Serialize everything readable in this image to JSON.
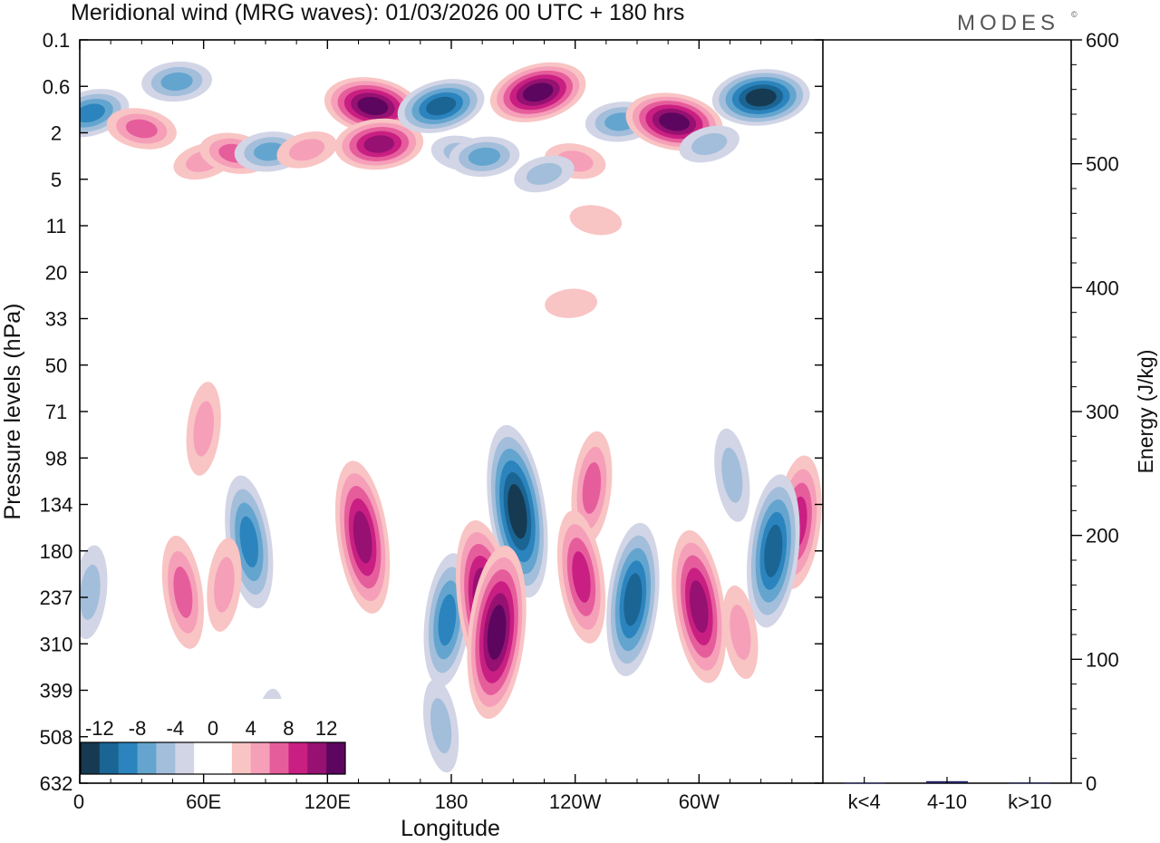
{
  "brand": "MODES",
  "brand_mark": "©",
  "chart_data": [
    {
      "type": "heatmap",
      "title": "Meridional wind (MRG waves):  01/03/2026  00 UTC  + 180 hrs",
      "xlabel": "Longitude",
      "ylabel": "Pressure levels (hPa)",
      "x_ticks": [
        "0",
        "60E",
        "120E",
        "180",
        "120W",
        "60W"
      ],
      "y_ticks": [
        "0.1",
        "0.6",
        "2",
        "5",
        "11",
        "20",
        "33",
        "50",
        "71",
        "98",
        "134",
        "180",
        "237",
        "310",
        "399",
        "508",
        "632"
      ],
      "colorbar": {
        "labels": [
          "-12",
          "-8",
          "-4",
          "0",
          "4",
          "8",
          "12"
        ],
        "colors": [
          "#163a52",
          "#1a6594",
          "#2b84bd",
          "#64a5cf",
          "#a2bedb",
          "#d2d5e6",
          "#ffffff",
          "#ffffff",
          "#f9c4c4",
          "#f59fb9",
          "#e65d9c",
          "#c91f82",
          "#961171",
          "#5c0660"
        ]
      },
      "positive_colors": [
        "#f9c4c4",
        "#f59fb9",
        "#e65d9c",
        "#c91f82",
        "#961171",
        "#5c0660"
      ],
      "negative_colors": [
        "#d2d5e6",
        "#a2bedb",
        "#64a5cf",
        "#2b84bd",
        "#1a6594",
        "#163a52"
      ],
      "features": [
        {
          "lon": 5,
          "lev": 1.2,
          "value": -7
        },
        {
          "lon": 30,
          "lev": 1.8,
          "value": 5
        },
        {
          "lon": 47,
          "lev": 0.5,
          "value": -6
        },
        {
          "lon": 60,
          "lev": 3.5,
          "value": 4
        },
        {
          "lon": 75,
          "lev": 3.0,
          "value": 5
        },
        {
          "lon": 92,
          "lev": 2.9,
          "value": -6
        },
        {
          "lon": 110,
          "lev": 2.8,
          "value": 4
        },
        {
          "lon": 142,
          "lev": 1.0,
          "value": 12
        },
        {
          "lon": 145,
          "lev": 2.5,
          "value": 9
        },
        {
          "lon": 175,
          "lev": 1.0,
          "value": -9
        },
        {
          "lon": 185,
          "lev": 3.0,
          "value": -4
        },
        {
          "lon": 196,
          "lev": 3.2,
          "value": -5
        },
        {
          "lon": 222,
          "lev": 0.7,
          "value": 13
        },
        {
          "lon": 240,
          "lev": 3.5,
          "value": 4
        },
        {
          "lon": 262,
          "lev": 1.5,
          "value": -6
        },
        {
          "lon": 225,
          "lev": 4.5,
          "value": -3
        },
        {
          "lon": 288,
          "lev": 1.5,
          "value": 11
        },
        {
          "lon": 330,
          "lev": 0.8,
          "value": -12
        },
        {
          "lon": 305,
          "lev": 2.5,
          "value": -4
        },
        {
          "lon": 250,
          "lev": 10.0,
          "value": 2
        },
        {
          "lon": 238,
          "lev": 28.0,
          "value": 2
        },
        {
          "lon": 60,
          "lev": 80.0,
          "value": 4
        },
        {
          "lon": 212,
          "lev": 140.0,
          "value": -11
        },
        {
          "lon": 248,
          "lev": 120.0,
          "value": 6
        },
        {
          "lon": 316,
          "lev": 110.0,
          "value": -3
        },
        {
          "lon": 348,
          "lev": 150.0,
          "value": 7
        },
        {
          "lon": 50,
          "lev": 230.0,
          "value": 5
        },
        {
          "lon": 5,
          "lev": 230.0,
          "value": -3
        },
        {
          "lon": 82,
          "lev": 170.0,
          "value": -8
        },
        {
          "lon": 70,
          "lev": 220.0,
          "value": 4
        },
        {
          "lon": 137,
          "lev": 165.0,
          "value": 9
        },
        {
          "lon": 178,
          "lev": 270.0,
          "value": -7
        },
        {
          "lon": 197,
          "lev": 250.0,
          "value": 11
        },
        {
          "lon": 202,
          "lev": 290.0,
          "value": 13
        },
        {
          "lon": 243,
          "lev": 210.0,
          "value": 7
        },
        {
          "lon": 268,
          "lev": 240.0,
          "value": -9
        },
        {
          "lon": 300,
          "lev": 250.0,
          "value": 9
        },
        {
          "lon": 336,
          "lev": 180.0,
          "value": -10
        },
        {
          "lon": 320,
          "lev": 290.0,
          "value": 4
        },
        {
          "lon": 92,
          "lev": 480.0,
          "value": -2
        },
        {
          "lon": 175,
          "lev": 480.0,
          "value": -3
        }
      ]
    },
    {
      "type": "bar",
      "ylabel": "Energy (J/kg)",
      "ylim": [
        0,
        600
      ],
      "y_ticks": [
        "0",
        "100",
        "200",
        "300",
        "400",
        "500",
        "600"
      ],
      "categories": [
        "k<4",
        "4-10",
        "k>10"
      ],
      "values": [
        0.3,
        1.6,
        0.5
      ],
      "bar_color": "#1f1f5c"
    }
  ]
}
